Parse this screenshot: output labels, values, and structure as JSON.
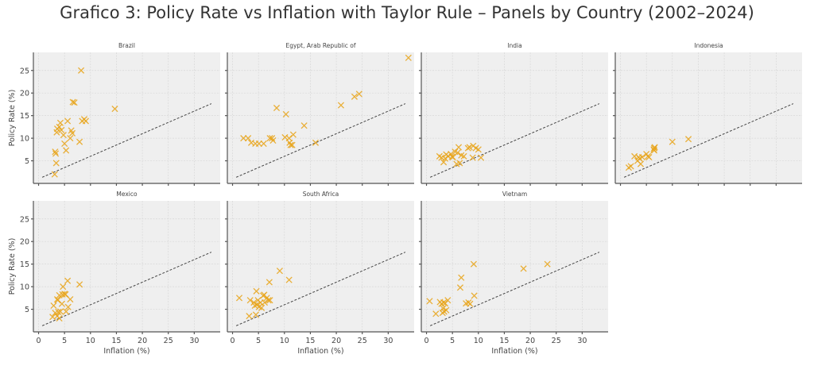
{
  "title": "Grafico 3: Policy Rate vs Inflation with Taylor Rule – Panels by Country (2002–2024)",
  "chart_data": {
    "type": "scatter",
    "title": "Grafico 3: Policy Rate vs Inflation with Taylor Rule – Panels by Country (2002–2024)",
    "xlabel": "Inflation (%)",
    "ylabel": "Policy Rate (%)",
    "xlim": [
      -1,
      35
    ],
    "ylim": [
      0,
      29
    ],
    "xticks": [
      0,
      5,
      10,
      15,
      20,
      25,
      30
    ],
    "yticks": [
      5,
      10,
      15,
      20,
      25
    ],
    "grid": true,
    "marker": "x",
    "marker_color": "#e8a317",
    "taylor_rule": {
      "label": "Taylor Rule",
      "style": "dashed",
      "color": "#444444",
      "x_range": [
        0.7,
        33.3
      ],
      "intercept": 1.0,
      "slope": 0.5
    },
    "panels": [
      {
        "country": "Brazil",
        "points": [
          [
            3.1,
            2.0
          ],
          [
            3.4,
            4.5
          ],
          [
            3.3,
            6.6
          ],
          [
            3.2,
            7.0
          ],
          [
            3.5,
            11.3
          ],
          [
            3.6,
            12.1
          ],
          [
            4.0,
            12.5
          ],
          [
            4.2,
            13.4
          ],
          [
            4.4,
            11.8
          ],
          [
            4.8,
            10.7
          ],
          [
            5.0,
            8.8
          ],
          [
            5.3,
            7.3
          ],
          [
            5.6,
            13.8
          ],
          [
            6.1,
            10.0
          ],
          [
            6.3,
            11.7
          ],
          [
            6.5,
            11.1
          ],
          [
            6.6,
            18.0
          ],
          [
            6.9,
            17.9
          ],
          [
            7.9,
            9.2
          ],
          [
            8.4,
            13.8
          ],
          [
            8.8,
            14.2
          ],
          [
            9.1,
            13.8
          ],
          [
            8.2,
            25.0
          ],
          [
            14.7,
            16.5
          ]
        ]
      },
      {
        "country": "Egypt, Arab Republic of",
        "points": [
          [
            2.1,
            10.0
          ],
          [
            3.0,
            10.0
          ],
          [
            3.6,
            9.0
          ],
          [
            4.4,
            8.8
          ],
          [
            5.1,
            8.8
          ],
          [
            6.0,
            8.8
          ],
          [
            7.2,
            10.0
          ],
          [
            7.6,
            10.0
          ],
          [
            7.8,
            9.5
          ],
          [
            8.5,
            16.7
          ],
          [
            10.1,
            10.2
          ],
          [
            10.3,
            15.3
          ],
          [
            10.9,
            10.0
          ],
          [
            11.0,
            9.0
          ],
          [
            11.2,
            8.5
          ],
          [
            11.5,
            8.5
          ],
          [
            11.7,
            10.8
          ],
          [
            13.8,
            12.8
          ],
          [
            16.0,
            9.0
          ],
          [
            20.9,
            17.3
          ],
          [
            23.5,
            19.2
          ],
          [
            24.4,
            19.8
          ],
          [
            33.9,
            27.8
          ]
        ]
      },
      {
        "country": "India",
        "points": [
          [
            2.5,
            6.0
          ],
          [
            2.9,
            5.7
          ],
          [
            3.3,
            4.7
          ],
          [
            3.6,
            5.5
          ],
          [
            3.8,
            6.4
          ],
          [
            4.2,
            6.0
          ],
          [
            4.7,
            6.5
          ],
          [
            4.9,
            5.9
          ],
          [
            5.1,
            5.8
          ],
          [
            5.5,
            7.0
          ],
          [
            5.8,
            4.3
          ],
          [
            6.0,
            6.8
          ],
          [
            6.2,
            8.0
          ],
          [
            6.4,
            4.5
          ],
          [
            6.7,
            6.2
          ],
          [
            7.2,
            6.0
          ],
          [
            8.0,
            7.8
          ],
          [
            8.3,
            8.0
          ],
          [
            8.9,
            5.7
          ],
          [
            9.0,
            8.3
          ],
          [
            9.5,
            7.8
          ],
          [
            10.0,
            7.5
          ],
          [
            10.5,
            5.7
          ]
        ]
      },
      {
        "country": "Indonesia",
        "points": [
          [
            1.6,
            3.5
          ],
          [
            2.0,
            3.8
          ],
          [
            2.7,
            6.0
          ],
          [
            3.3,
            5.0
          ],
          [
            3.5,
            5.8
          ],
          [
            3.7,
            5.5
          ],
          [
            3.9,
            4.3
          ],
          [
            4.2,
            5.8
          ],
          [
            5.0,
            6.5
          ],
          [
            5.3,
            6.0
          ],
          [
            5.5,
            5.8
          ],
          [
            6.4,
            7.5
          ],
          [
            6.5,
            7.8
          ],
          [
            6.6,
            8.0
          ],
          [
            6.5,
            7.3
          ],
          [
            10.0,
            9.2
          ],
          [
            13.1,
            9.8
          ]
        ]
      },
      {
        "country": "Mexico",
        "points": [
          [
            2.7,
            3.3
          ],
          [
            2.9,
            5.8
          ],
          [
            3.2,
            4.2
          ],
          [
            3.6,
            3.5
          ],
          [
            3.6,
            7.2
          ],
          [
            3.7,
            7.0
          ],
          [
            3.8,
            4.4
          ],
          [
            4.0,
            3.0
          ],
          [
            4.0,
            8.1
          ],
          [
            4.2,
            4.5
          ],
          [
            4.5,
            6.2
          ],
          [
            4.6,
            8.3
          ],
          [
            4.7,
            10.0
          ],
          [
            5.0,
            8.4
          ],
          [
            5.2,
            8.3
          ],
          [
            5.3,
            4.5
          ],
          [
            5.6,
            11.3
          ],
          [
            5.7,
            5.5
          ],
          [
            6.1,
            7.2
          ],
          [
            7.9,
            10.5
          ]
        ]
      },
      {
        "country": "South Africa",
        "points": [
          [
            1.3,
            7.5
          ],
          [
            3.2,
            3.5
          ],
          [
            3.4,
            7.0
          ],
          [
            4.1,
            6.5
          ],
          [
            4.3,
            5.8
          ],
          [
            4.5,
            3.8
          ],
          [
            4.6,
            9.0
          ],
          [
            4.7,
            6.0
          ],
          [
            4.9,
            7.0
          ],
          [
            5.1,
            5.5
          ],
          [
            5.4,
            6.5
          ],
          [
            5.6,
            5.3
          ],
          [
            5.9,
            8.0
          ],
          [
            6.1,
            8.2
          ],
          [
            6.2,
            6.5
          ],
          [
            6.6,
            7.5
          ],
          [
            6.9,
            7.0
          ],
          [
            7.2,
            7.0
          ],
          [
            7.1,
            11.0
          ],
          [
            9.1,
            13.5
          ],
          [
            10.9,
            11.5
          ]
        ]
      },
      {
        "country": "Vietnam",
        "points": [
          [
            0.6,
            6.8
          ],
          [
            1.8,
            4.0
          ],
          [
            2.6,
            6.6
          ],
          [
            2.9,
            6.2
          ],
          [
            3.1,
            4.2
          ],
          [
            3.2,
            5.2
          ],
          [
            3.3,
            6.5
          ],
          [
            3.4,
            4.5
          ],
          [
            3.6,
            6.3
          ],
          [
            3.8,
            4.8
          ],
          [
            4.1,
            7.0
          ],
          [
            6.5,
            9.8
          ],
          [
            6.7,
            12.0
          ],
          [
            7.6,
            6.3
          ],
          [
            8.1,
            6.5
          ],
          [
            8.4,
            6.2
          ],
          [
            9.2,
            8.0
          ],
          [
            9.1,
            15.0
          ],
          [
            18.7,
            14.0
          ],
          [
            23.3,
            15.0
          ]
        ]
      }
    ]
  }
}
